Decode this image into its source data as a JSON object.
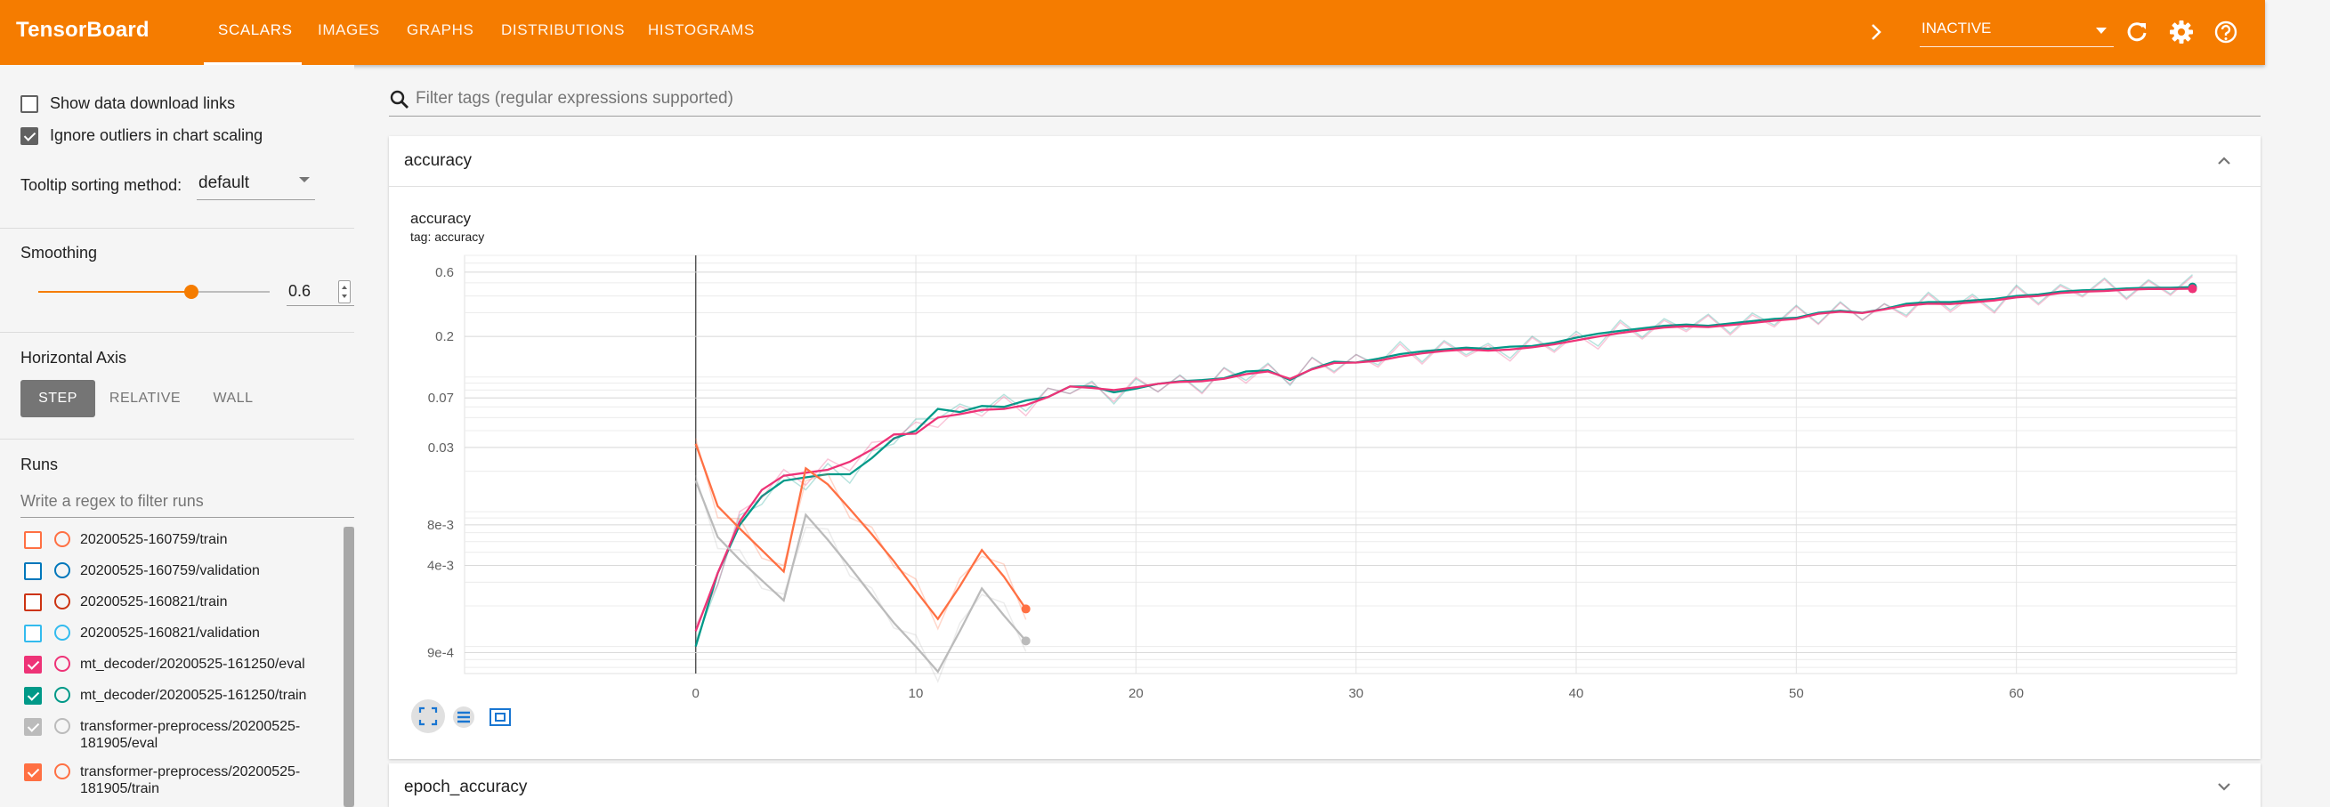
{
  "app": {
    "title": "TensorBoard",
    "accent": "#f57c00",
    "tabs": [
      {
        "label": "SCALARS",
        "active": true
      },
      {
        "label": "IMAGES",
        "active": false
      },
      {
        "label": "GRAPHS",
        "active": false
      },
      {
        "label": "DISTRIBUTIONS",
        "active": false
      },
      {
        "label": "HISTOGRAMS",
        "active": false
      }
    ],
    "more_icon": "chevron-right-icon",
    "status_select": "INACTIVE",
    "icons": [
      "refresh-icon",
      "settings-icon",
      "help-icon"
    ]
  },
  "sidebar": {
    "show_download_links": {
      "label": "Show data download links",
      "checked": false
    },
    "ignore_outliers": {
      "label": "Ignore outliers in chart scaling",
      "checked": true
    },
    "tooltip_sorting": {
      "label": "Tooltip sorting method:",
      "value": "default"
    },
    "smoothing": {
      "label": "Smoothing",
      "value": "0.6",
      "level": 0.6
    },
    "horizontal_axis": {
      "label": "Horizontal Axis",
      "options": [
        {
          "label": "STEP",
          "active": true
        },
        {
          "label": "RELATIVE",
          "active": false
        },
        {
          "label": "WALL",
          "active": false
        }
      ]
    },
    "runs": {
      "label": "Runs",
      "filter_placeholder": "Write a regex to filter runs",
      "items": [
        {
          "name": "20200525-160759/train",
          "checked": false,
          "color": "#ff7043"
        },
        {
          "name": "20200525-160759/validation",
          "checked": false,
          "color": "#0077bb"
        },
        {
          "name": "20200525-160821/train",
          "checked": false,
          "color": "#cc3311"
        },
        {
          "name": "20200525-160821/validation",
          "checked": false,
          "color": "#33bbee"
        },
        {
          "name": "mt_decoder/20200525-161250/eval",
          "checked": true,
          "color": "#ee3377"
        },
        {
          "name": "mt_decoder/20200525-161250/train",
          "checked": true,
          "color": "#009988"
        },
        {
          "name": "transformer-preprocess/20200525-181905/eval",
          "checked": true,
          "color": "#bbbbbb"
        },
        {
          "name": "transformer-preprocess/20200525-181905/train",
          "checked": true,
          "color": "#ff7043"
        }
      ]
    }
  },
  "main": {
    "filter_placeholder": "Filter tags (regular expressions supported)",
    "cards": [
      {
        "title": "accuracy",
        "expanded": true
      },
      {
        "title": "epoch_accuracy",
        "expanded": false
      }
    ],
    "chart_tools": [
      "fit-domain-icon",
      "data-table-icon",
      "toggle-log-scale-icon"
    ]
  },
  "chart_data": {
    "type": "line",
    "title": "accuracy",
    "subtitle": "tag: accuracy",
    "y_scale": "log",
    "x_ticks": [
      "0",
      "10",
      "20",
      "30",
      "40",
      "50",
      "60"
    ],
    "y_ticks": [
      "0.6",
      "0.2",
      "0.07",
      "0.03",
      "8e-3",
      "4e-3",
      "9e-4"
    ],
    "xlim": [
      -10.5,
      70
    ],
    "grid": true,
    "series": [
      {
        "name": "mt_decoder/20200525-161250/train",
        "color": "#009988",
        "x": [
          0,
          1,
          2,
          3,
          4,
          5,
          6,
          7,
          8,
          9,
          10,
          11,
          12,
          13,
          14,
          15,
          16,
          17,
          18,
          19,
          20,
          21,
          22,
          23,
          24,
          25,
          26,
          27,
          28,
          29,
          30,
          31,
          32,
          33,
          34,
          35,
          36,
          37,
          38,
          39,
          40,
          41,
          42,
          43,
          44,
          45,
          46,
          47,
          48,
          49,
          50,
          51,
          52,
          53,
          54,
          55,
          56,
          57,
          58,
          59,
          60,
          61,
          62,
          63,
          64,
          65,
          66,
          67,
          68
        ],
        "y": [
          0.001,
          0.0035,
          0.008,
          0.013,
          0.017,
          0.018,
          0.019,
          0.019,
          0.025,
          0.035,
          0.04,
          0.058,
          0.055,
          0.061,
          0.06,
          0.067,
          0.071,
          0.085,
          0.085,
          0.077,
          0.082,
          0.089,
          0.093,
          0.095,
          0.098,
          0.11,
          0.112,
          0.095,
          0.115,
          0.13,
          0.128,
          0.137,
          0.148,
          0.155,
          0.16,
          0.165,
          0.162,
          0.168,
          0.17,
          0.18,
          0.196,
          0.21,
          0.22,
          0.23,
          0.24,
          0.245,
          0.24,
          0.25,
          0.26,
          0.27,
          0.275,
          0.3,
          0.31,
          0.3,
          0.32,
          0.35,
          0.36,
          0.36,
          0.37,
          0.38,
          0.4,
          0.41,
          0.43,
          0.44,
          0.445,
          0.455,
          0.46,
          0.46,
          0.465
        ]
      },
      {
        "name": "mt_decoder/20200525-161250/eval",
        "color": "#ee3377",
        "x": [
          0,
          1,
          2,
          3,
          4,
          5,
          6,
          7,
          8,
          9,
          10,
          11,
          12,
          13,
          14,
          15,
          16,
          17,
          18,
          19,
          20,
          21,
          22,
          23,
          24,
          25,
          26,
          27,
          28,
          29,
          30,
          31,
          32,
          33,
          34,
          35,
          36,
          37,
          38,
          39,
          40,
          41,
          42,
          43,
          44,
          45,
          46,
          47,
          48,
          49,
          50,
          51,
          52,
          53,
          54,
          55,
          56,
          57,
          58,
          59,
          60,
          61,
          62,
          63,
          64,
          65,
          66,
          67,
          68
        ],
        "y": [
          0.0013,
          0.0035,
          0.0085,
          0.0145,
          0.0185,
          0.0195,
          0.0205,
          0.0235,
          0.029,
          0.0375,
          0.038,
          0.05,
          0.053,
          0.057,
          0.058,
          0.062,
          0.071,
          0.085,
          0.083,
          0.08,
          0.084,
          0.089,
          0.092,
          0.093,
          0.097,
          0.105,
          0.11,
          0.097,
          0.114,
          0.127,
          0.128,
          0.132,
          0.142,
          0.15,
          0.156,
          0.16,
          0.157,
          0.16,
          0.166,
          0.175,
          0.187,
          0.2,
          0.212,
          0.223,
          0.233,
          0.238,
          0.235,
          0.243,
          0.252,
          0.262,
          0.27,
          0.295,
          0.305,
          0.298,
          0.318,
          0.34,
          0.35,
          0.348,
          0.358,
          0.37,
          0.39,
          0.4,
          0.42,
          0.43,
          0.435,
          0.445,
          0.45,
          0.45,
          0.452
        ]
      },
      {
        "name": "transformer-preprocess/20200525-181905/train",
        "color": "#ff7043",
        "x": [
          0,
          1,
          2,
          3,
          4,
          5,
          6,
          7,
          8,
          9,
          10,
          11,
          12,
          13,
          14,
          15
        ],
        "y": [
          0.032,
          0.011,
          0.0075,
          0.0052,
          0.0036,
          0.021,
          0.016,
          0.0105,
          0.0068,
          0.0043,
          0.0026,
          0.0016,
          0.0028,
          0.0052,
          0.0033,
          0.0019
        ]
      },
      {
        "name": "transformer-preprocess/20200525-181905/eval",
        "color": "#bbbbbb",
        "x": [
          0,
          1,
          2,
          3,
          4,
          5,
          6,
          7,
          8,
          9,
          10,
          11,
          12,
          13,
          14,
          15
        ],
        "y": [
          0.017,
          0.0065,
          0.0044,
          0.0031,
          0.0022,
          0.0095,
          0.0062,
          0.0039,
          0.0024,
          0.0015,
          0.001,
          0.00065,
          0.0013,
          0.0027,
          0.0017,
          0.0011
        ]
      }
    ]
  }
}
